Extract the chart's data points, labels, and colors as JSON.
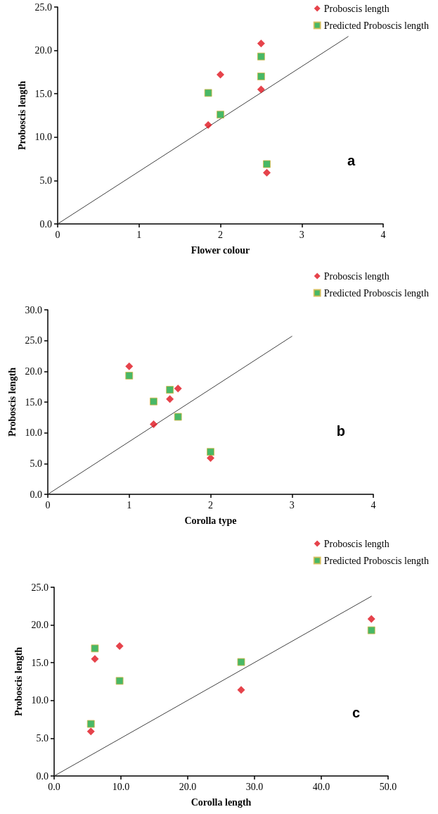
{
  "chart_data": [
    {
      "type": "scatter",
      "xlabel": "Flower colour",
      "ylabel": "Proboscis length",
      "annotations": [
        "a"
      ],
      "legend": "top right",
      "grid": false,
      "xlim": [
        0,
        4
      ],
      "xticks": [
        0,
        1,
        2,
        3,
        4
      ],
      "ylim": [
        0,
        25
      ],
      "yticks": [
        {
          "value": 0,
          "label": "0.0"
        },
        {
          "value": 5,
          "label": "5.0"
        },
        {
          "value": 10,
          "label": "10.0"
        },
        {
          "value": 15,
          "label": "15.0"
        },
        {
          "value": 20,
          "label": "20.0"
        },
        {
          "value": 25,
          "label": "25.0"
        }
      ],
      "series": [
        {
          "name": "Proboscis length",
          "color": "#e0141e",
          "marker": "diamond",
          "x": [
            1.85,
            2.0,
            2.5,
            2.5,
            2.57
          ],
          "values": [
            11.4,
            17.2,
            20.8,
            15.5,
            5.9
          ]
        },
        {
          "name": "Predicted Proboscis length",
          "color": "#1aa640",
          "marker": "square",
          "x": [
            1.85,
            2.0,
            2.5,
            2.5,
            2.57
          ],
          "values": [
            15.1,
            12.6,
            19.3,
            17.0,
            6.9
          ]
        },
        {
          "type": "line",
          "color": "#404040",
          "marker": "none",
          "line_style": "solid",
          "x": [
            0,
            3.57
          ],
          "values": [
            0,
            21.6
          ]
        }
      ]
    },
    {
      "type": "scatter",
      "xlabel": "Corolla type",
      "ylabel": "Proboscis length",
      "annotations": [
        "b"
      ],
      "legend": "top right",
      "grid": false,
      "xlim": [
        0,
        4
      ],
      "xticks": [
        0,
        1,
        2,
        3,
        4
      ],
      "ylim": [
        0,
        30
      ],
      "yticks": [
        {
          "value": 0,
          "label": "0.0"
        },
        {
          "value": 5,
          "label": "5.0"
        },
        {
          "value": 10,
          "label": "10.0"
        },
        {
          "value": 15,
          "label": "15.0"
        },
        {
          "value": 20,
          "label": "20.0"
        },
        {
          "value": 25,
          "label": "25.0"
        },
        {
          "value": 30,
          "label": "30.0"
        }
      ],
      "series": [
        {
          "name": "Proboscis length",
          "color": "#e0141e",
          "marker": "diamond",
          "x": [
            1.0,
            1.3,
            1.5,
            1.6,
            2.0
          ],
          "values": [
            20.8,
            11.4,
            15.5,
            17.2,
            5.9
          ]
        },
        {
          "name": "Predicted Proboscis length",
          "color": "#1aa640",
          "marker": "square",
          "x": [
            1.0,
            1.3,
            1.5,
            1.6,
            2.0
          ],
          "values": [
            19.3,
            15.1,
            17.0,
            12.6,
            6.9
          ]
        },
        {
          "type": "line",
          "color": "#404040",
          "marker": "none",
          "line_style": "solid",
          "x": [
            0,
            3.0
          ],
          "values": [
            0,
            25.7
          ]
        }
      ]
    },
    {
      "type": "scatter",
      "xlabel": "Corolla length",
      "ylabel": "Proboscis length",
      "annotations": [
        "c"
      ],
      "legend": "top right",
      "grid": false,
      "xlim": [
        0,
        50
      ],
      "xticks": [
        {
          "value": 0,
          "label": "0.0"
        },
        {
          "value": 10,
          "label": "10.0"
        },
        {
          "value": 20,
          "label": "20.0"
        },
        {
          "value": 30,
          "label": "30.0"
        },
        {
          "value": 40,
          "label": "40.0"
        },
        {
          "value": 50,
          "label": "50.0"
        }
      ],
      "ylim": [
        0,
        25
      ],
      "yticks": [
        {
          "value": 0,
          "label": "0.0"
        },
        {
          "value": 5,
          "label": "5.0"
        },
        {
          "value": 10,
          "label": "10.0"
        },
        {
          "value": 15,
          "label": "15.0"
        },
        {
          "value": 20,
          "label": "20.0"
        },
        {
          "value": 25,
          "label": "25.0"
        }
      ],
      "series": [
        {
          "name": "Proboscis length",
          "color": "#e0141e",
          "marker": "diamond",
          "x": [
            5.5,
            6.1,
            9.8,
            28.0,
            47.5
          ],
          "values": [
            5.9,
            15.5,
            17.2,
            11.4,
            20.8
          ]
        },
        {
          "name": "Predicted Proboscis length",
          "color": "#1aa640",
          "marker": "square",
          "x": [
            5.5,
            6.1,
            9.8,
            28.0,
            47.5
          ],
          "values": [
            6.9,
            16.9,
            12.6,
            15.1,
            19.3
          ]
        },
        {
          "type": "line",
          "color": "#404040",
          "marker": "none",
          "line_style": "solid",
          "x": [
            0,
            47.5
          ],
          "values": [
            0,
            23.8
          ]
        }
      ]
    }
  ]
}
